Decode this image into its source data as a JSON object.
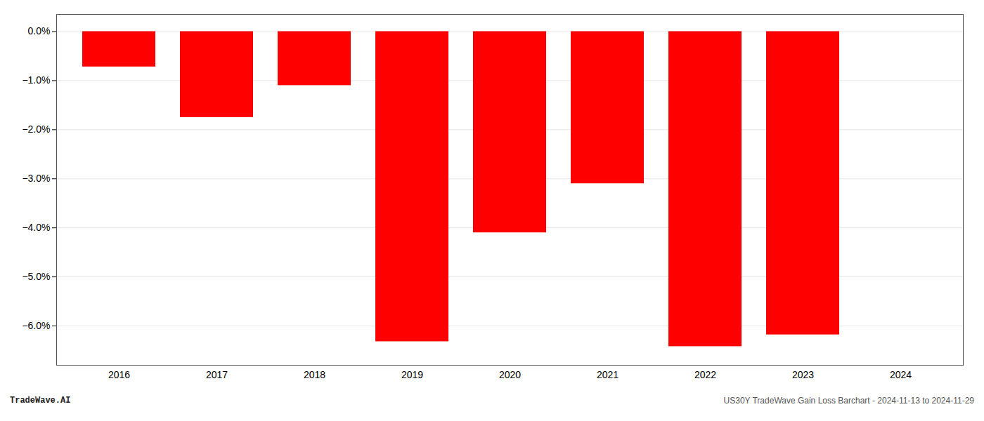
{
  "chart_data": {
    "type": "bar",
    "categories": [
      "2016",
      "2017",
      "2018",
      "2019",
      "2020",
      "2021",
      "2022",
      "2023",
      "2024"
    ],
    "values": [
      -0.72,
      -1.75,
      -1.1,
      -6.32,
      -4.1,
      -3.1,
      -6.42,
      -6.18,
      0.0
    ],
    "color": "#ff0000",
    "ylim": [
      -6.8,
      0.35
    ],
    "yticks": [
      {
        "value": 0.0,
        "label": "0.0%"
      },
      {
        "value": -1.0,
        "label": "−1.0%"
      },
      {
        "value": -2.0,
        "label": "−2.0%"
      },
      {
        "value": -3.0,
        "label": "−3.0%"
      },
      {
        "value": -4.0,
        "label": "−4.0%"
      },
      {
        "value": -5.0,
        "label": "−5.0%"
      },
      {
        "value": -6.0,
        "label": "−6.0%"
      }
    ],
    "grid": true,
    "annotations": [
      "TradeWave.AI",
      "US30Y TradeWave Gain Loss Barchart - 2024-11-13 to 2024-11-29"
    ]
  }
}
